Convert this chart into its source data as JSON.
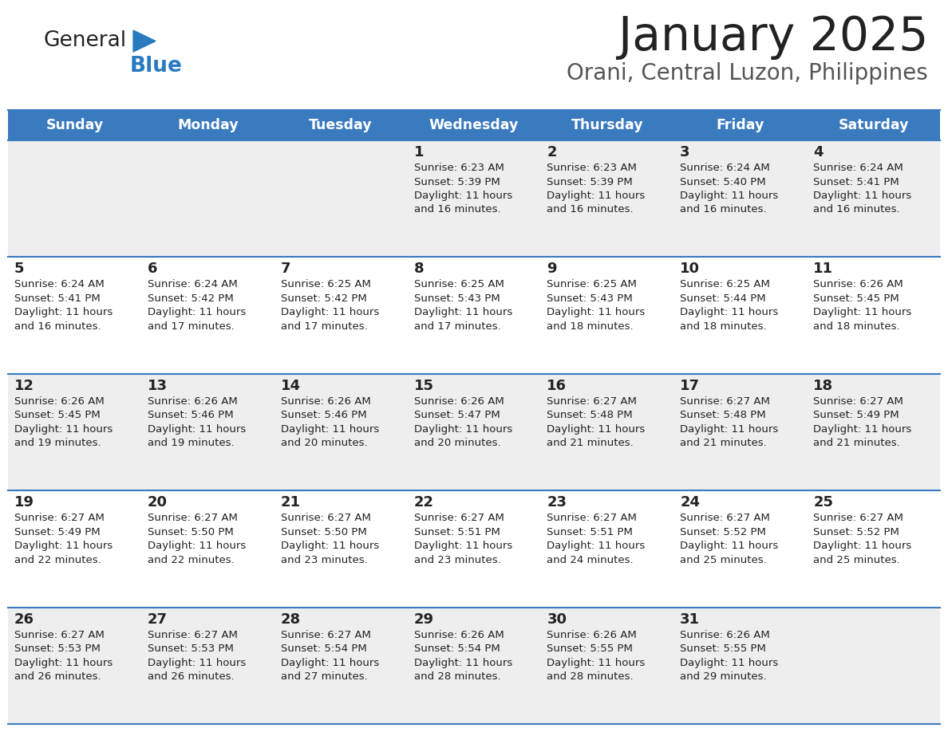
{
  "title": "January 2025",
  "subtitle": "Orani, Central Luzon, Philippines",
  "header_bg": "#3a7abf",
  "header_text_color": "#ffffff",
  "day_names": [
    "Sunday",
    "Monday",
    "Tuesday",
    "Wednesday",
    "Thursday",
    "Friday",
    "Saturday"
  ],
  "row_bg_odd": "#eeeeee",
  "row_bg_even": "#ffffff",
  "cell_border_color": "#3a7abf",
  "text_color": "#222222",
  "title_color": "#222222",
  "subtitle_color": "#555555",
  "logo_general_color": "#222222",
  "logo_blue_color": "#2a7abf",
  "calendar_data": [
    [
      null,
      null,
      null,
      {
        "day": 1,
        "sunrise": "6:23 AM",
        "sunset": "5:39 PM",
        "daylight": "11 hours\nand 16 minutes."
      },
      {
        "day": 2,
        "sunrise": "6:23 AM",
        "sunset": "5:39 PM",
        "daylight": "11 hours\nand 16 minutes."
      },
      {
        "day": 3,
        "sunrise": "6:24 AM",
        "sunset": "5:40 PM",
        "daylight": "11 hours\nand 16 minutes."
      },
      {
        "day": 4,
        "sunrise": "6:24 AM",
        "sunset": "5:41 PM",
        "daylight": "11 hours\nand 16 minutes."
      }
    ],
    [
      {
        "day": 5,
        "sunrise": "6:24 AM",
        "sunset": "5:41 PM",
        "daylight": "11 hours\nand 16 minutes."
      },
      {
        "day": 6,
        "sunrise": "6:24 AM",
        "sunset": "5:42 PM",
        "daylight": "11 hours\nand 17 minutes."
      },
      {
        "day": 7,
        "sunrise": "6:25 AM",
        "sunset": "5:42 PM",
        "daylight": "11 hours\nand 17 minutes."
      },
      {
        "day": 8,
        "sunrise": "6:25 AM",
        "sunset": "5:43 PM",
        "daylight": "11 hours\nand 17 minutes."
      },
      {
        "day": 9,
        "sunrise": "6:25 AM",
        "sunset": "5:43 PM",
        "daylight": "11 hours\nand 18 minutes."
      },
      {
        "day": 10,
        "sunrise": "6:25 AM",
        "sunset": "5:44 PM",
        "daylight": "11 hours\nand 18 minutes."
      },
      {
        "day": 11,
        "sunrise": "6:26 AM",
        "sunset": "5:45 PM",
        "daylight": "11 hours\nand 18 minutes."
      }
    ],
    [
      {
        "day": 12,
        "sunrise": "6:26 AM",
        "sunset": "5:45 PM",
        "daylight": "11 hours\nand 19 minutes."
      },
      {
        "day": 13,
        "sunrise": "6:26 AM",
        "sunset": "5:46 PM",
        "daylight": "11 hours\nand 19 minutes."
      },
      {
        "day": 14,
        "sunrise": "6:26 AM",
        "sunset": "5:46 PM",
        "daylight": "11 hours\nand 20 minutes."
      },
      {
        "day": 15,
        "sunrise": "6:26 AM",
        "sunset": "5:47 PM",
        "daylight": "11 hours\nand 20 minutes."
      },
      {
        "day": 16,
        "sunrise": "6:27 AM",
        "sunset": "5:48 PM",
        "daylight": "11 hours\nand 21 minutes."
      },
      {
        "day": 17,
        "sunrise": "6:27 AM",
        "sunset": "5:48 PM",
        "daylight": "11 hours\nand 21 minutes."
      },
      {
        "day": 18,
        "sunrise": "6:27 AM",
        "sunset": "5:49 PM",
        "daylight": "11 hours\nand 21 minutes."
      }
    ],
    [
      {
        "day": 19,
        "sunrise": "6:27 AM",
        "sunset": "5:49 PM",
        "daylight": "11 hours\nand 22 minutes."
      },
      {
        "day": 20,
        "sunrise": "6:27 AM",
        "sunset": "5:50 PM",
        "daylight": "11 hours\nand 22 minutes."
      },
      {
        "day": 21,
        "sunrise": "6:27 AM",
        "sunset": "5:50 PM",
        "daylight": "11 hours\nand 23 minutes."
      },
      {
        "day": 22,
        "sunrise": "6:27 AM",
        "sunset": "5:51 PM",
        "daylight": "11 hours\nand 23 minutes."
      },
      {
        "day": 23,
        "sunrise": "6:27 AM",
        "sunset": "5:51 PM",
        "daylight": "11 hours\nand 24 minutes."
      },
      {
        "day": 24,
        "sunrise": "6:27 AM",
        "sunset": "5:52 PM",
        "daylight": "11 hours\nand 25 minutes."
      },
      {
        "day": 25,
        "sunrise": "6:27 AM",
        "sunset": "5:52 PM",
        "daylight": "11 hours\nand 25 minutes."
      }
    ],
    [
      {
        "day": 26,
        "sunrise": "6:27 AM",
        "sunset": "5:53 PM",
        "daylight": "11 hours\nand 26 minutes."
      },
      {
        "day": 27,
        "sunrise": "6:27 AM",
        "sunset": "5:53 PM",
        "daylight": "11 hours\nand 26 minutes."
      },
      {
        "day": 28,
        "sunrise": "6:27 AM",
        "sunset": "5:54 PM",
        "daylight": "11 hours\nand 27 minutes."
      },
      {
        "day": 29,
        "sunrise": "6:26 AM",
        "sunset": "5:54 PM",
        "daylight": "11 hours\nand 28 minutes."
      },
      {
        "day": 30,
        "sunrise": "6:26 AM",
        "sunset": "5:55 PM",
        "daylight": "11 hours\nand 28 minutes."
      },
      {
        "day": 31,
        "sunrise": "6:26 AM",
        "sunset": "5:55 PM",
        "daylight": "11 hours\nand 29 minutes."
      },
      null
    ]
  ],
  "figsize": [
    11.88,
    9.18
  ],
  "dpi": 100
}
